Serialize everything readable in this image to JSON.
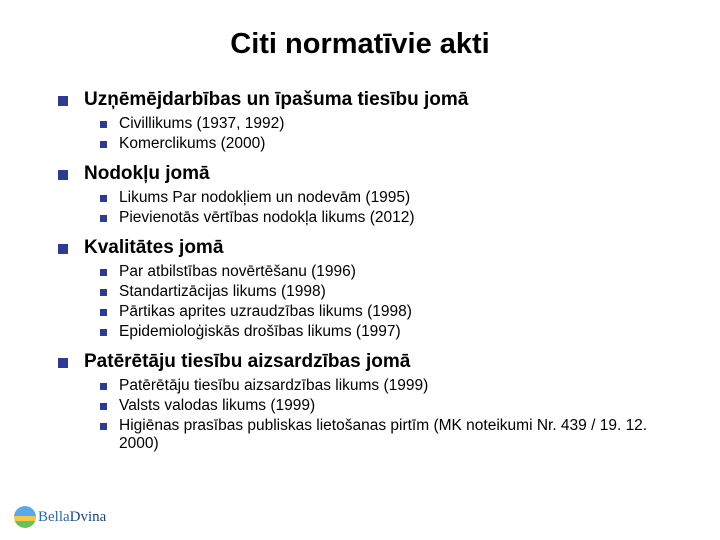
{
  "slide": {
    "title": "Citi normatīvie akti",
    "title_fontsize": 29,
    "title_color": "#000000",
    "heading_fontsize": 19,
    "subitem_fontsize": 15.5,
    "bullet_color": "#2f3b8f",
    "background_color": "#ffffff",
    "sections": [
      {
        "heading": "Uzņēmējdarbības un īpašuma tiesību jomā",
        "items": [
          "Civillikums (1937, 1992)",
          "Komerclikums (2000)"
        ]
      },
      {
        "heading": "Nodokļu jomā",
        "items": [
          "Likums Par nodokļiem un nodevām (1995)",
          "Pievienotās vērtības nodokļa likums (2012)"
        ]
      },
      {
        "heading": "Kvalitātes jomā",
        "items": [
          "Par atbilstības novērtēšanu (1996)",
          "Standartizācijas likums (1998)",
          "Pārtikas aprites uzraudzības likums (1998)",
          "Epidemioloģiskās drošības likums (1997)"
        ]
      },
      {
        "heading": "Patērētāju tiesību aizsardzības jomā",
        "items": [
          "Patērētāju tiesību aizsardzības likums (1999)",
          "Valsts valodas likums (1999)",
          "Higiēnas prasības publiskas lietošanas pirtīm (MK noteikumi Nr. 439 / 19. 12. 2000)"
        ]
      }
    ]
  },
  "logo": {
    "text_a": "Bella",
    "text_b": "Dvina"
  }
}
